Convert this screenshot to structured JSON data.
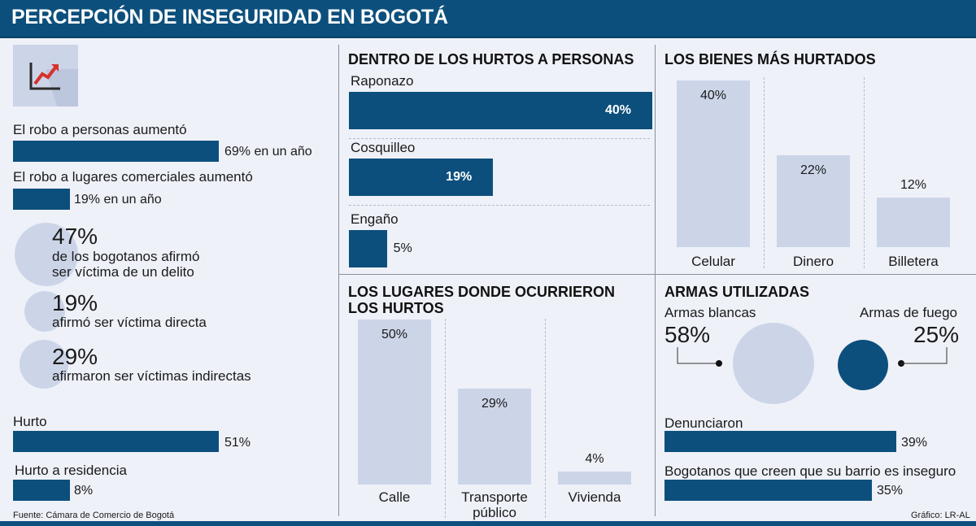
{
  "title": "PERCEPCIÓN DE INSEGURIDAD EN BOGOTÁ",
  "icon": "trend-up-chart-icon",
  "colors": {
    "accent": "#0c4f7c",
    "light": "#ccd5e8",
    "background": "#eef1f8"
  },
  "left": {
    "stats": [
      {
        "label": "El robo a personas aumentó",
        "value": "69% en un año",
        "pct": 69
      },
      {
        "label": "El robo a lugares comerciales aumentó",
        "value": "19% en un año",
        "pct": 19
      }
    ],
    "circles": [
      {
        "pct": "47%",
        "text1": "de los bogotanos afirmó",
        "text2": "ser víctima de un delito"
      },
      {
        "pct": "19%",
        "text1": "afirmó ser víctima directa"
      },
      {
        "pct": "29%",
        "text1": "afirmaron ser víctimas indirectas"
      }
    ],
    "types": [
      {
        "label": "Hurto",
        "value": "51%",
        "pct": 51
      },
      {
        "label": "Hurto a residencia",
        "value": "8%",
        "pct": 8
      }
    ]
  },
  "hurtos_personas": {
    "title": "DENTRO DE LOS HURTOS A PERSONAS",
    "items": [
      {
        "label": "Raponazo",
        "value": "40%",
        "pct": 40
      },
      {
        "label": "Cosquilleo",
        "value": "19%",
        "pct": 19
      },
      {
        "label": "Engaño",
        "value": "5%",
        "pct": 5
      }
    ]
  },
  "bienes": {
    "title": "LOS BIENES MÁS HURTADOS",
    "items": [
      {
        "label": "Celular",
        "value": "40%",
        "pct": 40
      },
      {
        "label": "Dinero",
        "value": "22%",
        "pct": 22
      },
      {
        "label": "Billetera",
        "value": "12%",
        "pct": 12
      }
    ]
  },
  "lugares": {
    "title1": "LOS LUGARES DONDE OCURRIERON",
    "title2": "LOS HURTOS",
    "items": [
      {
        "label1": "Calle",
        "label2": "",
        "value": "50%",
        "pct": 50
      },
      {
        "label1": "Transporte",
        "label2": "público",
        "value": "29%",
        "pct": 29
      },
      {
        "label1": "Vivienda",
        "label2": "",
        "value": "4%",
        "pct": 4
      }
    ]
  },
  "armas": {
    "title": "ARMAS UTILIZADAS",
    "blancas": {
      "label": "Armas blancas",
      "value": "58%"
    },
    "fuego": {
      "label": "Armas de fuego",
      "value": "25%"
    },
    "bars": [
      {
        "label": "Denunciaron",
        "value": "39%",
        "pct": 39
      },
      {
        "label": "Bogotanos que creen que su barrio es  inseguro",
        "value": "35%",
        "pct": 35
      }
    ]
  },
  "footer": {
    "source": "Fuente: Cámara de Comercio de Bogotá",
    "credit": "Gráfico: LR-AL"
  },
  "chart_data": [
    {
      "type": "bar",
      "title": "DENTRO DE LOS HURTOS A PERSONAS",
      "categories": [
        "Raponazo",
        "Cosquilleo",
        "Engaño"
      ],
      "values": [
        40,
        19,
        5
      ],
      "xlabel": "",
      "ylabel": "",
      "ylim": [
        0,
        40
      ]
    },
    {
      "type": "bar",
      "title": "LOS BIENES MÁS HURTADOS",
      "categories": [
        "Celular",
        "Dinero",
        "Billetera"
      ],
      "values": [
        40,
        22,
        12
      ],
      "xlabel": "",
      "ylabel": "",
      "ylim": [
        0,
        40
      ]
    },
    {
      "type": "bar",
      "title": "LOS LUGARES DONDE OCURRIERON LOS HURTOS",
      "categories": [
        "Calle",
        "Transporte público",
        "Vivienda"
      ],
      "values": [
        50,
        29,
        4
      ],
      "xlabel": "",
      "ylabel": "",
      "ylim": [
        0,
        50
      ]
    }
  ]
}
